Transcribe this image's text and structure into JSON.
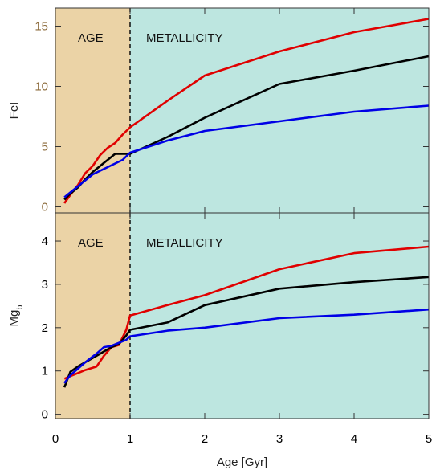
{
  "chart_data": [
    {
      "type": "line",
      "ylabel": "FeI",
      "xlim": [
        0,
        5
      ],
      "ylim": [
        -0.5,
        16.5
      ],
      "yticks": [
        0,
        5,
        10,
        15
      ],
      "grid": false,
      "regions": [
        {
          "label": "AGE",
          "x_start": 0,
          "x_end": 1,
          "color": "#ebd3a6"
        },
        {
          "label": "METALLICITY",
          "x_start": 1,
          "x_end": 5,
          "color": "#bde6e0"
        }
      ],
      "divider_x": 1,
      "series": [
        {
          "color": "#e00000",
          "points": [
            [
              0.12,
              0.3
            ],
            [
              0.2,
              1.0
            ],
            [
              0.3,
              1.8
            ],
            [
              0.4,
              2.8
            ],
            [
              0.5,
              3.4
            ],
            [
              0.6,
              4.3
            ],
            [
              0.7,
              4.9
            ],
            [
              0.8,
              5.3
            ],
            [
              0.9,
              6.0
            ],
            [
              1.0,
              6.6
            ],
            [
              1.5,
              8.8
            ],
            [
              2.0,
              10.9
            ],
            [
              3.0,
              12.9
            ],
            [
              4.0,
              14.5
            ],
            [
              5.0,
              15.6
            ]
          ]
        },
        {
          "color": "#000000",
          "points": [
            [
              0.12,
              0.6
            ],
            [
              0.2,
              1.1
            ],
            [
              0.3,
              1.6
            ],
            [
              0.4,
              2.3
            ],
            [
              0.5,
              2.9
            ],
            [
              0.6,
              3.4
            ],
            [
              0.7,
              3.9
            ],
            [
              0.8,
              4.4
            ],
            [
              0.9,
              4.4
            ],
            [
              1.0,
              4.4
            ],
            [
              1.5,
              5.8
            ],
            [
              2.0,
              7.4
            ],
            [
              3.0,
              10.2
            ],
            [
              4.0,
              11.3
            ],
            [
              5.0,
              12.5
            ]
          ]
        },
        {
          "color": "#0000e6",
          "points": [
            [
              0.12,
              0.8
            ],
            [
              0.2,
              1.2
            ],
            [
              0.3,
              1.7
            ],
            [
              0.4,
              2.2
            ],
            [
              0.5,
              2.7
            ],
            [
              0.6,
              3.0
            ],
            [
              0.7,
              3.3
            ],
            [
              0.8,
              3.6
            ],
            [
              0.9,
              3.9
            ],
            [
              1.0,
              4.5
            ],
            [
              1.5,
              5.5
            ],
            [
              2.0,
              6.3
            ],
            [
              3.0,
              7.1
            ],
            [
              4.0,
              7.9
            ],
            [
              5.0,
              8.4
            ]
          ]
        }
      ]
    },
    {
      "type": "line",
      "xlabel": "Age [Gyr]",
      "ylabel": "Mg_b",
      "xlim": [
        0,
        5
      ],
      "ylim": [
        -0.1,
        4.65
      ],
      "xticks": [
        0,
        1,
        2,
        3,
        4,
        5
      ],
      "yticks": [
        0,
        1,
        2,
        3,
        4
      ],
      "grid": false,
      "regions": [
        {
          "label": "AGE",
          "x_start": 0,
          "x_end": 1,
          "color": "#ebd3a6"
        },
        {
          "label": "METALLICITY",
          "x_start": 1,
          "x_end": 5,
          "color": "#bde6e0"
        }
      ],
      "divider_x": 1,
      "series": [
        {
          "color": "#e00000",
          "points": [
            [
              0.12,
              0.82
            ],
            [
              0.2,
              0.88
            ],
            [
              0.3,
              0.95
            ],
            [
              0.4,
              1.02
            ],
            [
              0.55,
              1.1
            ],
            [
              0.65,
              1.35
            ],
            [
              0.75,
              1.55
            ],
            [
              0.85,
              1.6
            ],
            [
              0.95,
              1.95
            ],
            [
              1.0,
              2.28
            ],
            [
              1.5,
              2.52
            ],
            [
              2.0,
              2.75
            ],
            [
              3.0,
              3.35
            ],
            [
              4.0,
              3.72
            ],
            [
              5.0,
              3.87
            ]
          ]
        },
        {
          "color": "#000000",
          "points": [
            [
              0.12,
              0.62
            ],
            [
              0.2,
              0.98
            ],
            [
              0.3,
              1.1
            ],
            [
              0.4,
              1.2
            ],
            [
              0.55,
              1.35
            ],
            [
              0.65,
              1.45
            ],
            [
              0.75,
              1.55
            ],
            [
              0.85,
              1.62
            ],
            [
              0.95,
              1.82
            ],
            [
              1.0,
              1.95
            ],
            [
              1.5,
              2.12
            ],
            [
              2.0,
              2.52
            ],
            [
              3.0,
              2.9
            ],
            [
              4.0,
              3.05
            ],
            [
              5.0,
              3.17
            ]
          ]
        },
        {
          "color": "#0000e6",
          "points": [
            [
              0.12,
              0.72
            ],
            [
              0.2,
              0.9
            ],
            [
              0.3,
              1.05
            ],
            [
              0.4,
              1.2
            ],
            [
              0.55,
              1.4
            ],
            [
              0.65,
              1.55
            ],
            [
              0.75,
              1.58
            ],
            [
              0.85,
              1.65
            ],
            [
              0.95,
              1.72
            ],
            [
              1.0,
              1.8
            ],
            [
              1.5,
              1.93
            ],
            [
              2.0,
              2.0
            ],
            [
              3.0,
              2.22
            ],
            [
              4.0,
              2.3
            ],
            [
              5.0,
              2.42
            ]
          ]
        }
      ]
    }
  ]
}
